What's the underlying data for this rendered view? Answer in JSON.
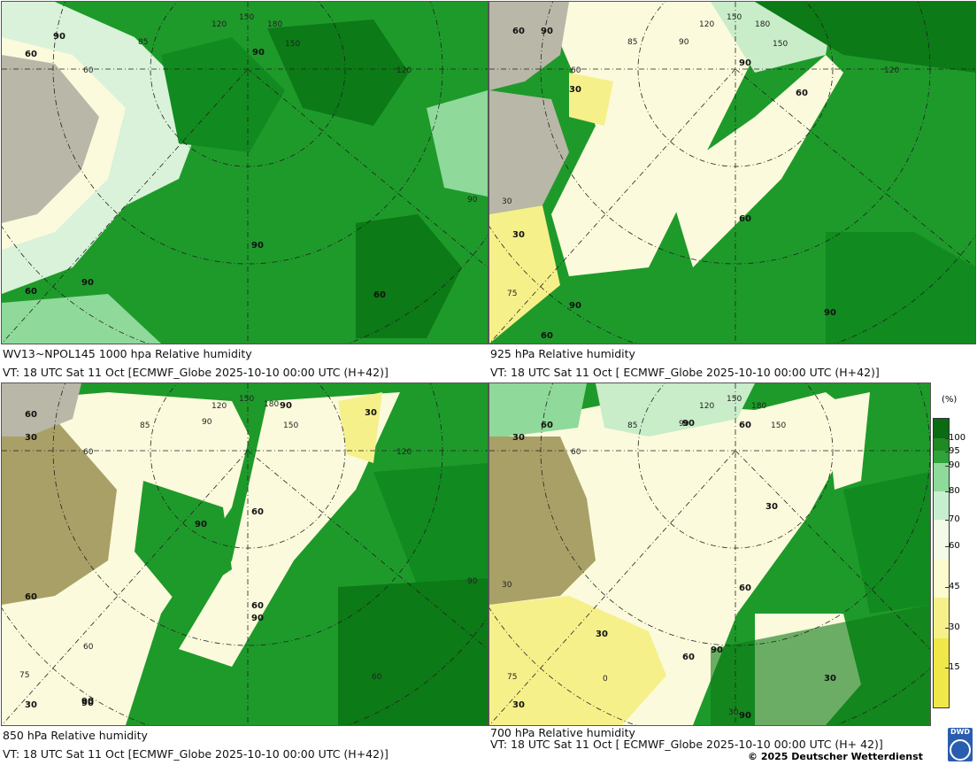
{
  "panels": [
    {
      "title": "WV13~NPOL145 1000 hpa Relative humidity",
      "valid_time": "VT: 18 UTC Sat  11 Oct [ECMWF_Globe 2025-10-10 00:00 UTC  (H+42)]",
      "contour_labels": [
        "90",
        "60",
        "90",
        "90",
        "60",
        "60",
        "90"
      ],
      "meridian_labels": [
        "85",
        "120",
        "150",
        "180",
        "150",
        "90",
        "60",
        "120",
        "90",
        "60",
        "60"
      ]
    },
    {
      "title": "925 hPa Relative humidity",
      "valid_time": "VT: 18 UTC Sat  11 Oct [ ECMWF_Globe 2025-10-10 00:00 UTC  (H+42)]",
      "contour_labels": [
        "60",
        "90",
        "30",
        "90",
        "60",
        "60",
        "30",
        "90",
        "90",
        "60"
      ],
      "meridian_labels": [
        "85",
        "120",
        "150",
        "180",
        "150",
        "60",
        "90",
        "30",
        "75",
        "120"
      ]
    },
    {
      "title": "850 hPa  Relative humidity",
      "valid_time": "VT: 18 UTC Sat  11 Oct [ECMWF_Globe 2025-10-10 00:00 UTC  (H+42)]",
      "contour_labels": [
        "60",
        "30",
        "90",
        "90",
        "30",
        "60",
        "90",
        "60",
        "90",
        "60",
        "90",
        "30"
      ],
      "meridian_labels": [
        "85",
        "120",
        "150",
        "180",
        "150",
        "90",
        "60",
        "120",
        "90",
        "60",
        "75",
        "60"
      ]
    },
    {
      "title": "700 hPa Relative humidity",
      "valid_time": "VT: 18 UTC Sat  11 Oct [ ECMWF_Globe 2025-10-10 00:00 UTC  (H+ 42)]",
      "contour_labels": [
        "60",
        "30",
        "90",
        "60",
        "30",
        "60",
        "30",
        "60",
        "90",
        "90",
        "30",
        "30"
      ],
      "meridian_labels": [
        "85",
        "120",
        "150",
        "180",
        "150",
        "60",
        "90",
        "30",
        "75",
        "0",
        "30"
      ]
    }
  ],
  "legend": {
    "title": "(%)",
    "levels": [
      "100",
      "95",
      "90",
      "80",
      "70",
      "60",
      "45",
      "30",
      "15"
    ],
    "colors": [
      "#0b6b12",
      "#1f8a23",
      "#2ea33a",
      "#8fd99a",
      "#c7efcf",
      "#f3fbe8",
      "#fcfbd0",
      "#f6f08a",
      "#f0e84a"
    ]
  },
  "copyright": "© 2025 Deutscher Wetterdienst",
  "logo_text": "DWD",
  "colors": {
    "very_moist": "#0c7a16",
    "moist": "#22a12e",
    "medium": "#7fcf85",
    "light": "#c9ecc9",
    "dry": "#fbfadc",
    "very_dry": "#f3ec86",
    "land_gray": "#b9b7a7",
    "land_olive": "#a9a067"
  }
}
